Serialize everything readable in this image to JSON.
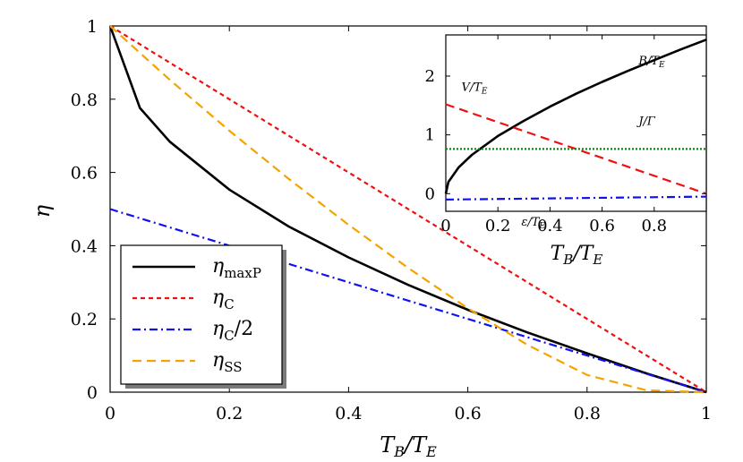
{
  "chart_data": [
    {
      "type": "line",
      "title": "",
      "xlabel": "T_B/T_E",
      "ylabel": "η",
      "xlim": [
        0,
        1
      ],
      "ylim": [
        0,
        1
      ],
      "xticks": [
        "0",
        "0.2",
        "0.4",
        "0.6",
        "0.8",
        "1"
      ],
      "yticks": [
        "0",
        "0.2",
        "0.4",
        "0.6",
        "0.8",
        "1"
      ],
      "legend_position": "bottom-left",
      "series": [
        {
          "name": "η_maxP",
          "label_main": "η",
          "label_sub": "maxP",
          "color": "#000000",
          "dash": "solid",
          "x": [
            0,
            0.05,
            0.1,
            0.2,
            0.3,
            0.4,
            0.5,
            0.6,
            0.7,
            0.8,
            0.9,
            1.0
          ],
          "y": [
            1.0,
            0.776,
            0.684,
            0.553,
            0.452,
            0.368,
            0.293,
            0.225,
            0.163,
            0.106,
            0.051,
            0.0
          ]
        },
        {
          "name": "η_C",
          "label_main": "η",
          "label_sub": "C",
          "color": "#ee1111",
          "dash": "dotted-short",
          "x": [
            0,
            1
          ],
          "y": [
            1,
            0
          ]
        },
        {
          "name": "η_C/2",
          "label_main": "η",
          "label_sub": "C",
          "label_suffix": "/2",
          "color": "#1111ee",
          "dash": "dashdot",
          "x": [
            0,
            1
          ],
          "y": [
            0.5,
            0
          ]
        },
        {
          "name": "η_SS",
          "label_main": "η",
          "label_sub": "SS",
          "color": "#f5a300",
          "dash": "dashed",
          "x": [
            0,
            0.1,
            0.2,
            0.3,
            0.4,
            0.5,
            0.6,
            0.7,
            0.8,
            0.9,
            1.0
          ],
          "y": [
            1.0,
            0.853,
            0.714,
            0.582,
            0.457,
            0.339,
            0.229,
            0.129,
            0.047,
            0.005,
            0.0
          ]
        }
      ]
    },
    {
      "type": "line",
      "title": "",
      "xlabel": "T_B/T_E",
      "ylabel": "",
      "xlim": [
        0,
        1
      ],
      "ylim": [
        -0.3,
        2.7
      ],
      "xticks": [
        "0",
        "0.2",
        "0.4",
        "0.6",
        "0.8"
      ],
      "yticks": [
        "0",
        "1",
        "2"
      ],
      "position": "inset top-right",
      "series": [
        {
          "name": "B/T_E",
          "color": "#000000",
          "dash": "solid",
          "x": [
            0,
            0.01,
            0.05,
            0.1,
            0.2,
            0.3,
            0.4,
            0.5,
            0.6,
            0.7,
            0.8,
            0.9,
            1.0
          ],
          "y": [
            0,
            0.2,
            0.45,
            0.66,
            0.98,
            1.24,
            1.48,
            1.7,
            1.9,
            2.09,
            2.27,
            2.45,
            2.62
          ]
        },
        {
          "name": "V/T_E",
          "color": "#ee1111",
          "dash": "dashed",
          "x": [
            0,
            1
          ],
          "y": [
            1.52,
            0.0
          ]
        },
        {
          "name": "J/Γ",
          "color": "#118811",
          "dash": "dotted",
          "x": [
            0,
            1
          ],
          "y": [
            0.76,
            0.76
          ]
        },
        {
          "name": "ε/T_E",
          "color": "#1111ee",
          "dash": "dashdot",
          "x": [
            0,
            1
          ],
          "y": [
            -0.1,
            -0.05
          ]
        }
      ],
      "annotations": [
        {
          "text": "B/T_E",
          "main": "B/T",
          "sub": "E",
          "x": 0.74,
          "y": 2.2
        },
        {
          "text": "V/T_E",
          "main": "V/T",
          "sub": "E",
          "x": 0.06,
          "y": 1.75
        },
        {
          "text": "J/Γ",
          "main": "J/Γ",
          "sub": "",
          "x": 0.74,
          "y": 1.17
        },
        {
          "text": "ε/T_E",
          "main": "ε/T",
          "sub": "E",
          "x": 0.29,
          "y": -0.54
        }
      ]
    }
  ]
}
